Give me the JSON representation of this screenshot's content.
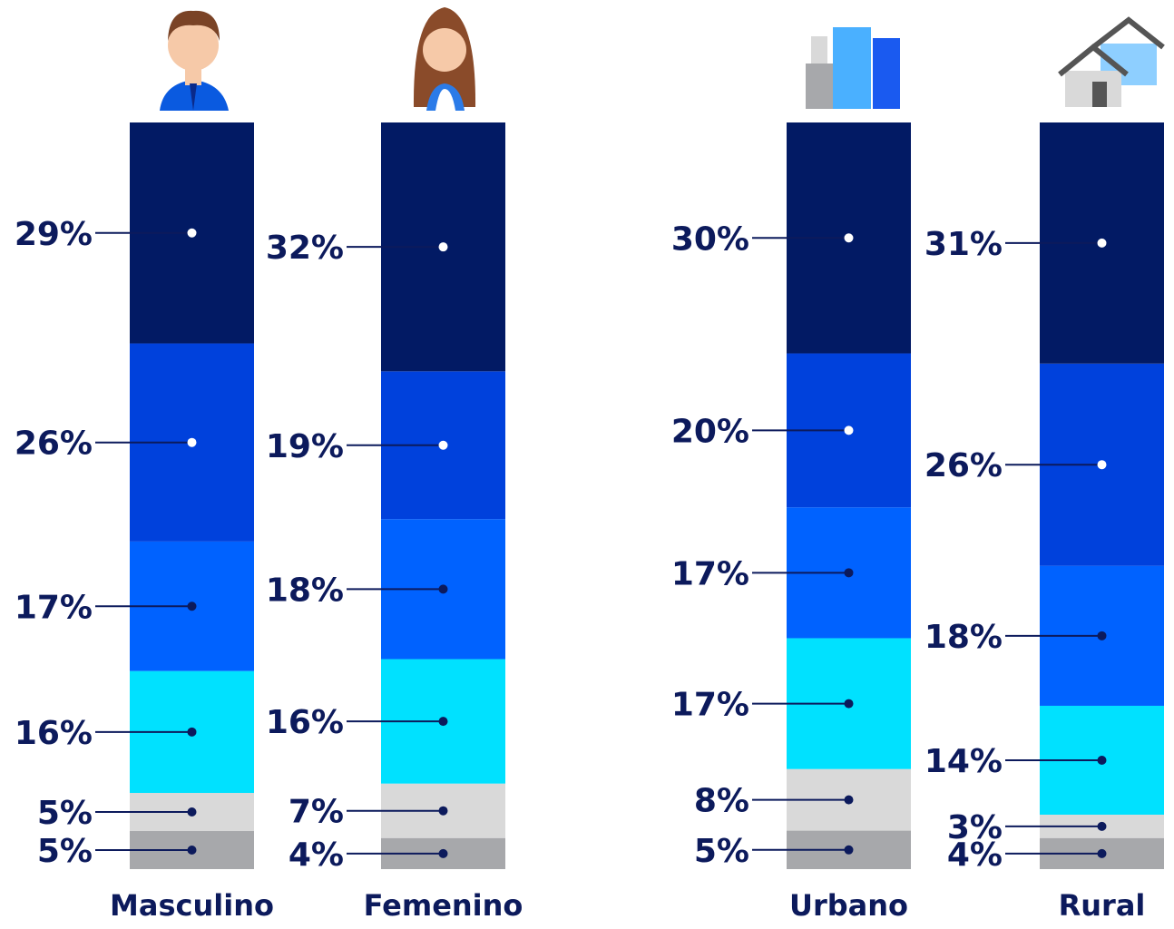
{
  "chart_data": {
    "type": "stacked-bar",
    "categories": [
      "Masculino",
      "Femenino",
      "Urbano",
      "Rural"
    ],
    "series": [
      {
        "color": "#a7a8ab",
        "values": [
          5,
          4,
          5,
          4
        ],
        "value_labels": [
          "5%",
          "4%",
          "5%",
          "4%"
        ]
      },
      {
        "color": "#d9d9d9",
        "values": [
          5,
          7,
          8,
          3
        ],
        "value_labels": [
          "5%",
          "7%",
          "8%",
          "3%"
        ]
      },
      {
        "color": "#00e1ff",
        "values": [
          16,
          16,
          17,
          14
        ],
        "value_labels": [
          "16%",
          "16%",
          "17%",
          "14%"
        ]
      },
      {
        "color": "#0062ff",
        "values": [
          17,
          18,
          17,
          18
        ],
        "value_labels": [
          "17%",
          "18%",
          "17%",
          "18%"
        ]
      },
      {
        "color": "#0041dc",
        "values": [
          26,
          19,
          20,
          26
        ],
        "value_labels": [
          "26%",
          "19%",
          "20%",
          "26%"
        ]
      },
      {
        "color": "#021a64",
        "values": [
          29,
          32,
          30,
          31
        ],
        "value_labels": [
          "29%",
          "32%",
          "30%",
          "31%"
        ]
      }
    ]
  }
}
